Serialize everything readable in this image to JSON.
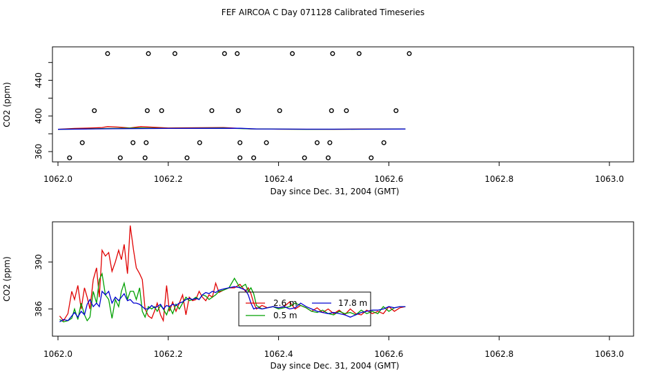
{
  "page_title": "FEF AIRCOA C  Day 071128  Calibrated Timeseries",
  "chart_data": [
    {
      "type": "scatter",
      "title": "FEF AIRCOA C  Day 071128  Calibrated Timeseries",
      "xlabel": "Day since Dec. 31, 2004 (GMT)",
      "ylabel": "CO2 (ppm)",
      "xlim": [
        1062.0,
        1063.0
      ],
      "ylim": [
        350,
        476
      ],
      "xticks": [
        1062.0,
        1062.2,
        1062.4,
        1062.6,
        1062.8,
        1063.0
      ],
      "xtick_labels": [
        "1062.0",
        "1062.2",
        "1062.4",
        "1062.6",
        "1062.8",
        "1063.0"
      ],
      "yticks": [
        360,
        380,
        400,
        420,
        440,
        460
      ],
      "ytick_labels": [
        "360",
        "",
        "400",
        "",
        "440",
        ""
      ],
      "points": [
        {
          "x": 1062.09,
          "y": 470
        },
        {
          "x": 1062.164,
          "y": 470
        },
        {
          "x": 1062.212,
          "y": 470
        },
        {
          "x": 1062.302,
          "y": 470
        },
        {
          "x": 1062.325,
          "y": 470
        },
        {
          "x": 1062.425,
          "y": 470
        },
        {
          "x": 1062.498,
          "y": 470
        },
        {
          "x": 1062.546,
          "y": 470
        },
        {
          "x": 1062.637,
          "y": 470
        },
        {
          "x": 1062.066,
          "y": 406
        },
        {
          "x": 1062.162,
          "y": 406
        },
        {
          "x": 1062.188,
          "y": 406
        },
        {
          "x": 1062.279,
          "y": 406
        },
        {
          "x": 1062.327,
          "y": 406
        },
        {
          "x": 1062.402,
          "y": 406
        },
        {
          "x": 1062.496,
          "y": 406
        },
        {
          "x": 1062.523,
          "y": 406
        },
        {
          "x": 1062.613,
          "y": 406
        },
        {
          "x": 1062.044,
          "y": 370
        },
        {
          "x": 1062.136,
          "y": 370
        },
        {
          "x": 1062.16,
          "y": 370
        },
        {
          "x": 1062.257,
          "y": 370
        },
        {
          "x": 1062.33,
          "y": 370
        },
        {
          "x": 1062.378,
          "y": 370
        },
        {
          "x": 1062.47,
          "y": 370
        },
        {
          "x": 1062.493,
          "y": 370
        },
        {
          "x": 1062.591,
          "y": 370
        },
        {
          "x": 1062.021,
          "y": 353
        },
        {
          "x": 1062.113,
          "y": 353
        },
        {
          "x": 1062.158,
          "y": 353
        },
        {
          "x": 1062.234,
          "y": 353
        },
        {
          "x": 1062.33,
          "y": 353
        },
        {
          "x": 1062.355,
          "y": 353
        },
        {
          "x": 1062.447,
          "y": 353
        },
        {
          "x": 1062.49,
          "y": 353
        },
        {
          "x": 1062.568,
          "y": 353
        }
      ],
      "series": [
        {
          "name": "2.6 m",
          "color": "#e00000",
          "x": [
            1062.0,
            1062.03,
            1062.06,
            1062.08,
            1062.09,
            1062.11,
            1062.13,
            1062.15,
            1062.2,
            1062.3,
            1062.35,
            1062.4,
            1062.5,
            1062.55,
            1062.63
          ],
          "y": [
            385,
            386,
            386.5,
            387,
            388,
            387.5,
            386.5,
            388,
            386.5,
            387,
            385.5,
            385.2,
            385,
            385.3,
            385.3
          ]
        },
        {
          "name": "0.5 m",
          "color": "#00a000",
          "x": [
            1062.0,
            1062.05,
            1062.1,
            1062.15,
            1062.2,
            1062.3,
            1062.35,
            1062.45,
            1062.55,
            1062.63
          ],
          "y": [
            385,
            385.5,
            386,
            386.5,
            386,
            386.5,
            385.5,
            385,
            385.2,
            385.3
          ]
        },
        {
          "name": "17.8 m",
          "color": "#0000d0",
          "x": [
            1062.0,
            1062.05,
            1062.1,
            1062.15,
            1062.2,
            1062.25,
            1062.33,
            1062.36,
            1062.45,
            1062.55,
            1062.63
          ],
          "y": [
            385,
            385.3,
            385.6,
            385.9,
            386,
            386.1,
            386.2,
            385.4,
            385.2,
            385.2,
            385.3
          ]
        }
      ]
    },
    {
      "type": "line",
      "xlabel": "Day since Dec. 31, 2004 (GMT)",
      "ylabel": "CO2 (ppm)",
      "xlim": [
        1062.0,
        1063.0
      ],
      "ylim": [
        383.8,
        393.3
      ],
      "xticks": [
        1062.0,
        1062.2,
        1062.4,
        1062.6,
        1062.8,
        1063.0
      ],
      "xtick_labels": [
        "1062.0",
        "1062.2",
        "1062.4",
        "1062.6",
        "1062.8",
        "1063.0"
      ],
      "yticks": [
        386,
        390
      ],
      "ytick_labels": [
        "386",
        "390"
      ],
      "legend": {
        "placement": "center",
        "entries": [
          "2.6 m",
          "17.8 m",
          "0.5 m"
        ]
      },
      "series": [
        {
          "name": "2.6 m",
          "color": "#e00000",
          "x": [
            1062.003,
            1062.01,
            1062.018,
            1062.025,
            1062.03,
            1062.036,
            1062.042,
            1062.048,
            1062.053,
            1062.058,
            1062.064,
            1062.07,
            1062.075,
            1062.08,
            1062.086,
            1062.092,
            1062.098,
            1062.104,
            1062.11,
            1062.115,
            1062.12,
            1062.126,
            1062.131,
            1062.137,
            1062.142,
            1062.148,
            1062.153,
            1062.158,
            1062.164,
            1062.17,
            1062.175,
            1062.18,
            1062.186,
            1062.191,
            1062.197,
            1062.202,
            1062.208,
            1062.214,
            1062.22,
            1062.226,
            1062.232,
            1062.238,
            1062.244,
            1062.25,
            1062.256,
            1062.262,
            1062.268,
            1062.274,
            1062.28,
            1062.286,
            1062.292,
            1062.3,
            1062.31,
            1062.32,
            1062.33,
            1062.34,
            1062.345,
            1062.35,
            1062.355,
            1062.36,
            1062.37,
            1062.38,
            1062.39,
            1062.4,
            1062.41,
            1062.42,
            1062.43,
            1062.44,
            1062.45,
            1062.46,
            1062.47,
            1062.48,
            1062.49,
            1062.5,
            1062.51,
            1062.52,
            1062.53,
            1062.54,
            1062.55,
            1062.56,
            1062.57,
            1062.58,
            1062.59,
            1062.6,
            1062.61,
            1062.62,
            1062.63
          ],
          "y": [
            385.4,
            385,
            385.6,
            387.5,
            386.8,
            388,
            386,
            387.8,
            387,
            386,
            388.5,
            389.5,
            387,
            391,
            390.5,
            390.8,
            389.2,
            390,
            391,
            390.2,
            391.5,
            389,
            393.1,
            391,
            389.5,
            389,
            388.5,
            386,
            385.4,
            385.2,
            385.8,
            386.5,
            385.5,
            385,
            388,
            385.8,
            386.6,
            385.8,
            386.5,
            387.2,
            385.5,
            387,
            386.7,
            386.8,
            387.5,
            387,
            386.7,
            387.2,
            387,
            388.2,
            387.4,
            387.6,
            387.8,
            387.8,
            388.1,
            387.5,
            387.8,
            387.3,
            386.5,
            386,
            386.3,
            386.1,
            386.2,
            386.1,
            386.2,
            386.6,
            386,
            386.3,
            386.1,
            385.8,
            386.1,
            385.7,
            386,
            385.6,
            385.9,
            385.5,
            386,
            385.6,
            385.5,
            385.9,
            385.6,
            385.8,
            385.6,
            386.2,
            385.8,
            386.1,
            386.2
          ]
        },
        {
          "name": "0.5 m",
          "color": "#00a000",
          "x": [
            1062.003,
            1062.01,
            1062.018,
            1062.025,
            1062.03,
            1062.036,
            1062.042,
            1062.048,
            1062.053,
            1062.058,
            1062.064,
            1062.07,
            1062.075,
            1062.08,
            1062.086,
            1062.092,
            1062.098,
            1062.104,
            1062.11,
            1062.115,
            1062.12,
            1062.126,
            1062.131,
            1062.137,
            1062.142,
            1062.148,
            1062.153,
            1062.158,
            1062.164,
            1062.17,
            1062.175,
            1062.18,
            1062.186,
            1062.191,
            1062.197,
            1062.202,
            1062.208,
            1062.214,
            1062.22,
            1062.226,
            1062.232,
            1062.238,
            1062.244,
            1062.25,
            1062.256,
            1062.262,
            1062.268,
            1062.274,
            1062.28,
            1062.286,
            1062.292,
            1062.3,
            1062.31,
            1062.32,
            1062.33,
            1062.34,
            1062.345,
            1062.35,
            1062.355,
            1062.36,
            1062.37,
            1062.38,
            1062.39,
            1062.4,
            1062.41,
            1062.42,
            1062.43,
            1062.44,
            1062.45,
            1062.46,
            1062.47,
            1062.48,
            1062.49,
            1062.5,
            1062.51,
            1062.52,
            1062.53,
            1062.54,
            1062.55,
            1062.56,
            1062.57,
            1062.58,
            1062.59,
            1062.6,
            1062.61,
            1062.62,
            1062.63
          ],
          "y": [
            385.1,
            384.9,
            385,
            385.2,
            386,
            385.1,
            386.5,
            385.5,
            385,
            385.3,
            387.5,
            386.5,
            388.5,
            389,
            387.2,
            386.8,
            385.2,
            386.8,
            386.2,
            387.5,
            388.2,
            386.8,
            387.5,
            387.5,
            386.8,
            387.8,
            385.8,
            385.3,
            386.2,
            386,
            386.2,
            385.8,
            386.3,
            386,
            385.5,
            386.2,
            385.6,
            386.4,
            386,
            386.5,
            387,
            386.7,
            386.8,
            387,
            386.8,
            387.2,
            387.1,
            386.8,
            387,
            387.2,
            387.5,
            387.6,
            387.8,
            388.6,
            387.8,
            388.1,
            387.5,
            387.8,
            387.3,
            386.3,
            386,
            386.1,
            386.2,
            386,
            386.1,
            386.2,
            386.5,
            386.3,
            386.1,
            385.8,
            385.7,
            385.9,
            385.6,
            385.5,
            385.8,
            385.6,
            385.7,
            385.5,
            385.9,
            385.6,
            385.8,
            385.6,
            386.2,
            385.8,
            386.1,
            386.2,
            386.2
          ]
        },
        {
          "name": "17.8 m",
          "color": "#0000d0",
          "x": [
            1062.003,
            1062.01,
            1062.018,
            1062.025,
            1062.03,
            1062.036,
            1062.042,
            1062.048,
            1062.053,
            1062.058,
            1062.064,
            1062.07,
            1062.075,
            1062.08,
            1062.086,
            1062.092,
            1062.098,
            1062.104,
            1062.11,
            1062.115,
            1062.12,
            1062.126,
            1062.131,
            1062.137,
            1062.142,
            1062.148,
            1062.153,
            1062.158,
            1062.164,
            1062.17,
            1062.175,
            1062.18,
            1062.186,
            1062.191,
            1062.197,
            1062.202,
            1062.208,
            1062.214,
            1062.22,
            1062.226,
            1062.232,
            1062.238,
            1062.244,
            1062.25,
            1062.256,
            1062.262,
            1062.268,
            1062.274,
            1062.28,
            1062.286,
            1062.292,
            1062.3,
            1062.31,
            1062.32,
            1062.33,
            1062.34,
            1062.345,
            1062.35,
            1062.355,
            1062.36,
            1062.37,
            1062.38,
            1062.39,
            1062.4,
            1062.41,
            1062.42,
            1062.43,
            1062.44,
            1062.45,
            1062.46,
            1062.47,
            1062.48,
            1062.49,
            1062.5,
            1062.51,
            1062.52,
            1062.53,
            1062.54,
            1062.55,
            1062.56,
            1062.57,
            1062.58,
            1062.59,
            1062.6,
            1062.61,
            1062.62,
            1062.63
          ],
          "y": [
            384.9,
            385.1,
            385,
            385.4,
            385.7,
            385.3,
            385.8,
            385.5,
            386.4,
            386.8,
            386.2,
            386.5,
            386.2,
            387.5,
            387.2,
            387.5,
            386.5,
            387,
            386.7,
            387,
            387.3,
            386.7,
            386.8,
            386.5,
            386.5,
            386.4,
            386.2,
            386,
            386,
            386.3,
            386.1,
            386.2,
            386.4,
            386,
            386.3,
            386.2,
            386.4,
            386.3,
            386.5,
            386.6,
            386.8,
            386.9,
            386.8,
            386.9,
            386.8,
            387.2,
            387.4,
            387.3,
            387.5,
            387.4,
            387.6,
            387.7,
            387.8,
            387.9,
            387.8,
            387.6,
            387.2,
            386.5,
            386,
            386.1,
            386,
            386.1,
            386.2,
            386.1,
            386.2,
            386,
            386.1,
            386.5,
            386.2,
            386,
            385.8,
            385.7,
            385.6,
            385.7,
            385.6,
            385.5,
            385.3,
            385.5,
            385.7,
            385.8,
            385.9,
            385.9,
            386,
            386.2,
            386.1,
            386.2,
            386.2
          ]
        }
      ]
    }
  ]
}
